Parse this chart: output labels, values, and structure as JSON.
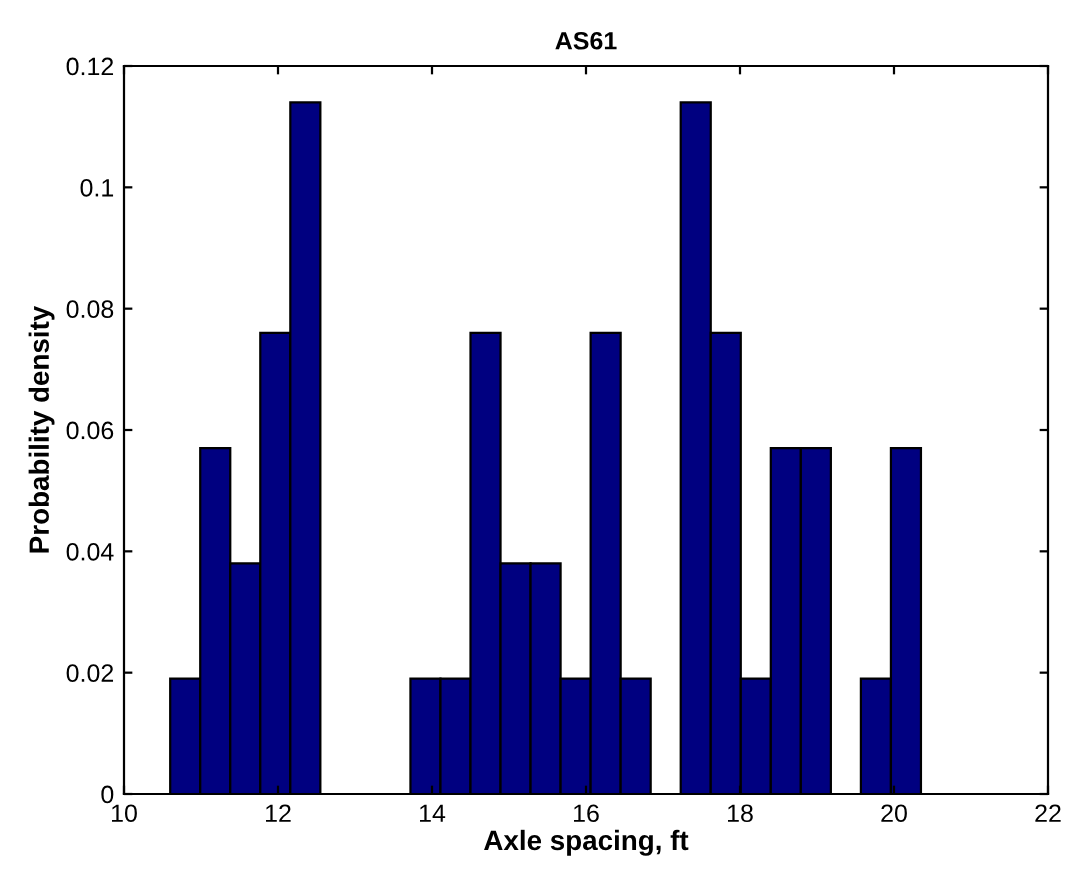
{
  "chart_data": {
    "type": "histogram",
    "title": "AS61",
    "xlabel": "Axle spacing, ft",
    "ylabel": "Probability density",
    "bins": [
      10.6,
      10.99,
      11.38,
      11.77,
      12.16,
      12.55,
      12.94,
      13.33,
      13.72,
      14.11,
      14.5,
      14.89,
      15.28,
      15.67,
      16.06,
      16.45,
      16.84,
      17.23,
      17.62,
      18.01,
      18.4,
      18.79,
      19.18,
      19.57,
      19.96,
      20.35
    ],
    "values": [
      0.019,
      0.057,
      0.038,
      0.076,
      0.114,
      0,
      0,
      0,
      0.019,
      0.019,
      0.076,
      0.038,
      0.038,
      0.019,
      0.076,
      0.019,
      0,
      0.114,
      0.076,
      0.019,
      0.057,
      0.057,
      0,
      0.019,
      0.057
    ],
    "color": "#000080",
    "xlim": [
      10,
      22
    ],
    "xticks": [
      10,
      12,
      14,
      16,
      18,
      20,
      22
    ],
    "ylim": [
      0,
      0.12
    ],
    "yticks": [
      0,
      0.02,
      0.04,
      0.06,
      0.08,
      0.1,
      0.12
    ],
    "grid": false
  }
}
